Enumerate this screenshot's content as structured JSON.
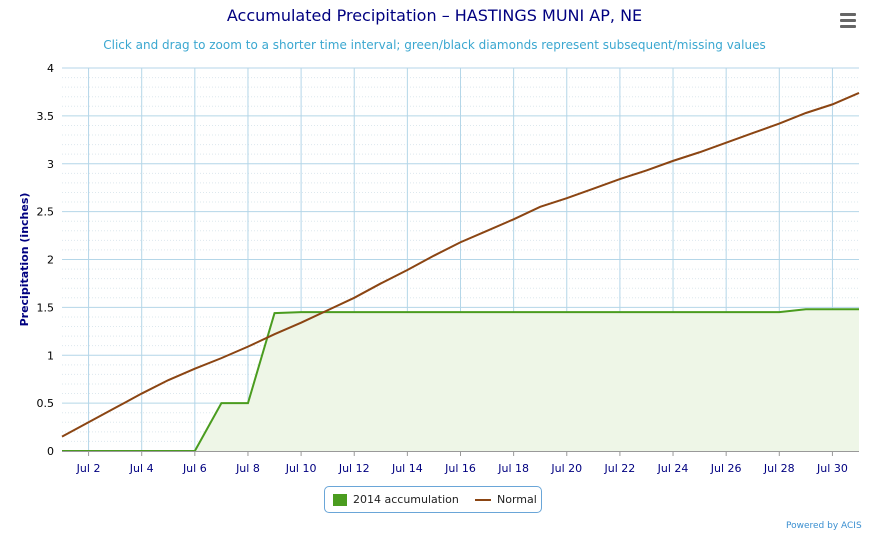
{
  "title": "Accumulated Precipitation – HASTINGS MUNI AP, NE",
  "subtitle": "Click and drag to zoom to a shorter time interval; green/black diamonds represent subsequent/missing values",
  "menu_icon": "hamburger-menu-icon",
  "credits": "Powered by ACIS",
  "colors": {
    "accumulation": "#4a9c1f",
    "normal": "#8b4513",
    "fill": "#eef6e7",
    "grid": "#b4d6e8",
    "axis_text": "#000080"
  },
  "chart_data": {
    "type": "line",
    "title": "Accumulated Precipitation – HASTINGS MUNI AP, NE",
    "ylabel": "Precipitation (inches)",
    "xlabel": "",
    "ylim": [
      0,
      4
    ],
    "xlim": [
      1,
      31
    ],
    "grid": true,
    "legend_position": "bottom-center",
    "x_ticks": [
      {
        "day": 2,
        "label": "Jul 2"
      },
      {
        "day": 4,
        "label": "Jul 4"
      },
      {
        "day": 6,
        "label": "Jul 6"
      },
      {
        "day": 8,
        "label": "Jul 8"
      },
      {
        "day": 10,
        "label": "Jul 10"
      },
      {
        "day": 12,
        "label": "Jul 12"
      },
      {
        "day": 14,
        "label": "Jul 14"
      },
      {
        "day": 16,
        "label": "Jul 16"
      },
      {
        "day": 18,
        "label": "Jul 18"
      },
      {
        "day": 20,
        "label": "Jul 20"
      },
      {
        "day": 22,
        "label": "Jul 22"
      },
      {
        "day": 24,
        "label": "Jul 24"
      },
      {
        "day": 26,
        "label": "Jul 26"
      },
      {
        "day": 28,
        "label": "Jul 28"
      },
      {
        "day": 30,
        "label": "Jul 30"
      }
    ],
    "y_ticks": [
      {
        "value": 0,
        "label": "0"
      },
      {
        "value": 0.5,
        "label": "0.5"
      },
      {
        "value": 1,
        "label": "1"
      },
      {
        "value": 1.5,
        "label": "1.5"
      },
      {
        "value": 2,
        "label": "2"
      },
      {
        "value": 2.5,
        "label": "2.5"
      },
      {
        "value": 3,
        "label": "3"
      },
      {
        "value": 3.5,
        "label": "3.5"
      },
      {
        "value": 4,
        "label": "4"
      }
    ],
    "series": [
      {
        "name": "2014 accumulation",
        "style": "area",
        "x": [
          1,
          2,
          3,
          4,
          5,
          6,
          7,
          8,
          9,
          10,
          11,
          12,
          13,
          14,
          15,
          16,
          17,
          18,
          19,
          20,
          21,
          22,
          23,
          24,
          25,
          26,
          27,
          28,
          29,
          30,
          31
        ],
        "values": [
          0,
          0,
          0,
          0,
          0,
          0,
          0.5,
          0.5,
          1.44,
          1.45,
          1.45,
          1.45,
          1.45,
          1.45,
          1.45,
          1.45,
          1.45,
          1.45,
          1.45,
          1.45,
          1.45,
          1.45,
          1.45,
          1.45,
          1.45,
          1.45,
          1.45,
          1.45,
          1.48,
          1.48,
          1.48
        ]
      },
      {
        "name": "Normal",
        "style": "line",
        "x": [
          1,
          2,
          3,
          4,
          5,
          6,
          7,
          8,
          9,
          10,
          11,
          12,
          13,
          14,
          15,
          16,
          17,
          18,
          19,
          20,
          21,
          22,
          23,
          24,
          25,
          26,
          27,
          28,
          29,
          30,
          31
        ],
        "values": [
          0.15,
          0.3,
          0.45,
          0.6,
          0.74,
          0.86,
          0.97,
          1.09,
          1.22,
          1.34,
          1.47,
          1.6,
          1.75,
          1.89,
          2.04,
          2.18,
          2.3,
          2.42,
          2.55,
          2.64,
          2.74,
          2.84,
          2.93,
          3.03,
          3.12,
          3.22,
          3.32,
          3.42,
          3.53,
          3.62,
          3.74
        ]
      }
    ]
  }
}
